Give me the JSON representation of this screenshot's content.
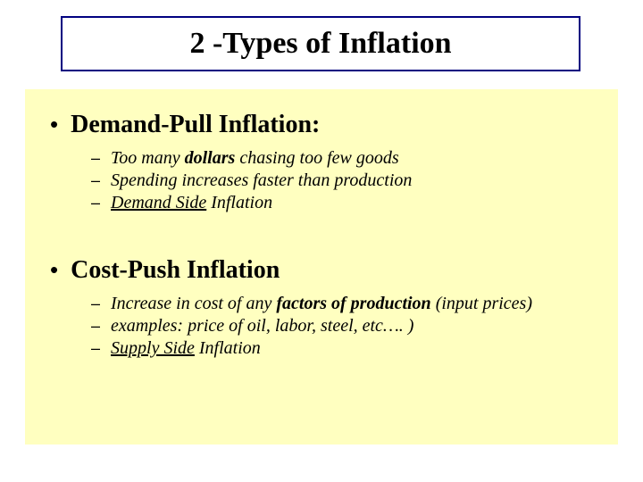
{
  "title": "2 -Types of Inflation",
  "background_color": "#ffffff",
  "title_border_color": "#000080",
  "content_background": "#ffffc0",
  "sections": [
    {
      "heading": "Demand-Pull Inflation:",
      "items": [
        {
          "prefix": "Too many ",
          "bold": "dollars",
          "mid": " chasing too few goods",
          "underline": "",
          "suffix": ""
        },
        {
          "prefix": "Spending increases faster than production",
          "bold": "",
          "mid": "",
          "underline": "",
          "suffix": ""
        },
        {
          "prefix": "",
          "bold": "",
          "mid": "",
          "underline": "Demand Side",
          "suffix": " Inflation"
        }
      ]
    },
    {
      "heading": "Cost-Push Inflation",
      "items": [
        {
          "prefix": "Increase in cost of any ",
          "bold": "factors of production",
          "mid": " (input prices)",
          "underline": "",
          "suffix": ""
        },
        {
          "prefix": "examples:  price of oil, labor, steel, etc…. )",
          "bold": "",
          "mid": "",
          "underline": "",
          "suffix": ""
        },
        {
          "prefix": "",
          "bold": "",
          "mid": "",
          "underline": "Supply Side",
          "suffix": " Inflation"
        }
      ]
    }
  ]
}
